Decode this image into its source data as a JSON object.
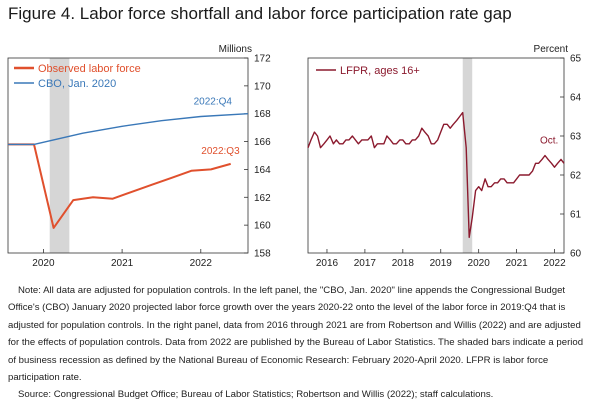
{
  "figure": {
    "title": "Figure 4. Labor force shortfall and labor force participation rate gap",
    "note": "Note: All data are adjusted for population controls. In the left panel, the \"CBO, Jan. 2020\" line appends the Congressional Budget Office's (CBO) January 2020 projected labor force growth over the years 2020-22 onto the level of the labor force in 2019:Q4 that is adjusted for population controls. In the right panel, data from 2016 through 2021 are from Robertson and Willis (2022) and are adjusted for the effects of population controls. Data from 2022 are published by the Bureau of Labor Statistics. The shaded bars indicate a period of business recession as defined by the National Bureau of Economic Research: February 2020-April 2020. LFPR is labor force participation rate.",
    "source": "Source: Congressional Budget Office; Bureau of Labor Statistics; Robertson and Willis (2022); staff calculations."
  },
  "chart_data": [
    {
      "type": "line",
      "unit_label": "Millions",
      "y_axis_side": "right",
      "ylim": [
        158,
        172
      ],
      "yticks": [
        158,
        160,
        162,
        164,
        166,
        168,
        170,
        172
      ],
      "xlim": [
        2019.55,
        2022.6
      ],
      "xticks": [
        {
          "value": 2020.0,
          "label": "2020"
        },
        {
          "value": 2021.0,
          "label": "2021"
        },
        {
          "value": 2022.0,
          "label": "2022"
        }
      ],
      "recession_shading": [
        2020.08,
        2020.33
      ],
      "legend_position": "top-left",
      "series": [
        {
          "name": "Observed labor force",
          "color": "#e0502d",
          "end_label": "2022:Q3",
          "x": [
            2019.55,
            2019.88,
            2020.13,
            2020.38,
            2020.63,
            2020.88,
            2021.13,
            2021.38,
            2021.63,
            2021.88,
            2022.13,
            2022.38
          ],
          "y": [
            165.8,
            165.8,
            159.8,
            161.8,
            162.0,
            161.9,
            162.4,
            162.9,
            163.4,
            163.9,
            164.0,
            164.4
          ]
        },
        {
          "name": "CBO, Jan. 2020",
          "color": "#3a78b8",
          "end_label": "2022:Q4",
          "x": [
            2019.55,
            2019.88,
            2020.5,
            2021.0,
            2021.5,
            2022.0,
            2022.6
          ],
          "y": [
            165.8,
            165.8,
            166.6,
            167.1,
            167.5,
            167.8,
            168.0
          ]
        }
      ]
    },
    {
      "type": "line",
      "unit_label": "Percent",
      "y_axis_side": "right",
      "ylim": [
        60,
        65
      ],
      "yticks": [
        60,
        61,
        62,
        63,
        64,
        65
      ],
      "xlim": [
        2016.0,
        2022.75
      ],
      "xticks": [
        {
          "value": 2016.5,
          "label": "2016"
        },
        {
          "value": 2017.5,
          "label": "2017"
        },
        {
          "value": 2018.5,
          "label": "2018"
        },
        {
          "value": 2019.5,
          "label": "2019"
        },
        {
          "value": 2020.5,
          "label": "2020"
        },
        {
          "value": 2021.5,
          "label": "2021"
        },
        {
          "value": 2022.5,
          "label": "2022"
        }
      ],
      "recession_shading": [
        2020.08,
        2020.33
      ],
      "legend_position": "top-left",
      "series": [
        {
          "name": "LFPR, ages 16+",
          "color": "#8b1a2e",
          "end_label": "Oct.",
          "x": [
            2016.0,
            2016.08,
            2016.17,
            2016.25,
            2016.33,
            2016.42,
            2016.5,
            2016.58,
            2016.67,
            2016.75,
            2016.83,
            2016.92,
            2017.0,
            2017.08,
            2017.17,
            2017.25,
            2017.33,
            2017.42,
            2017.5,
            2017.58,
            2017.67,
            2017.75,
            2017.83,
            2017.92,
            2018.0,
            2018.08,
            2018.17,
            2018.25,
            2018.33,
            2018.42,
            2018.5,
            2018.58,
            2018.67,
            2018.75,
            2018.83,
            2018.92,
            2019.0,
            2019.08,
            2019.17,
            2019.25,
            2019.33,
            2019.42,
            2019.5,
            2019.58,
            2019.67,
            2019.75,
            2019.83,
            2019.92,
            2020.0,
            2020.08,
            2020.17,
            2020.25,
            2020.33,
            2020.42,
            2020.5,
            2020.58,
            2020.67,
            2020.75,
            2020.83,
            2020.92,
            2021.0,
            2021.08,
            2021.17,
            2021.25,
            2021.33,
            2021.42,
            2021.5,
            2021.58,
            2021.67,
            2021.75,
            2021.83,
            2021.92,
            2022.0,
            2022.08,
            2022.17,
            2022.25,
            2022.33,
            2022.42,
            2022.5,
            2022.58,
            2022.67,
            2022.75
          ],
          "y": [
            62.7,
            62.9,
            63.1,
            63.0,
            62.7,
            62.8,
            62.9,
            63.0,
            62.8,
            62.9,
            62.8,
            62.8,
            62.9,
            62.9,
            63.0,
            62.9,
            62.8,
            62.9,
            62.9,
            62.9,
            63.0,
            62.7,
            62.8,
            62.8,
            62.8,
            63.0,
            62.9,
            62.8,
            62.8,
            62.9,
            62.9,
            62.8,
            62.8,
            62.9,
            62.9,
            63.0,
            63.2,
            63.1,
            63.0,
            62.8,
            62.8,
            62.9,
            63.1,
            63.3,
            63.3,
            63.2,
            63.3,
            63.4,
            63.5,
            63.6,
            62.7,
            60.4,
            60.9,
            61.6,
            61.7,
            61.6,
            61.9,
            61.7,
            61.7,
            61.8,
            61.8,
            61.9,
            61.9,
            61.8,
            61.8,
            61.8,
            61.9,
            62.0,
            62.0,
            62.0,
            62.0,
            62.1,
            62.3,
            62.3,
            62.4,
            62.5,
            62.4,
            62.3,
            62.2,
            62.3,
            62.4,
            62.3
          ]
        }
      ]
    }
  ]
}
